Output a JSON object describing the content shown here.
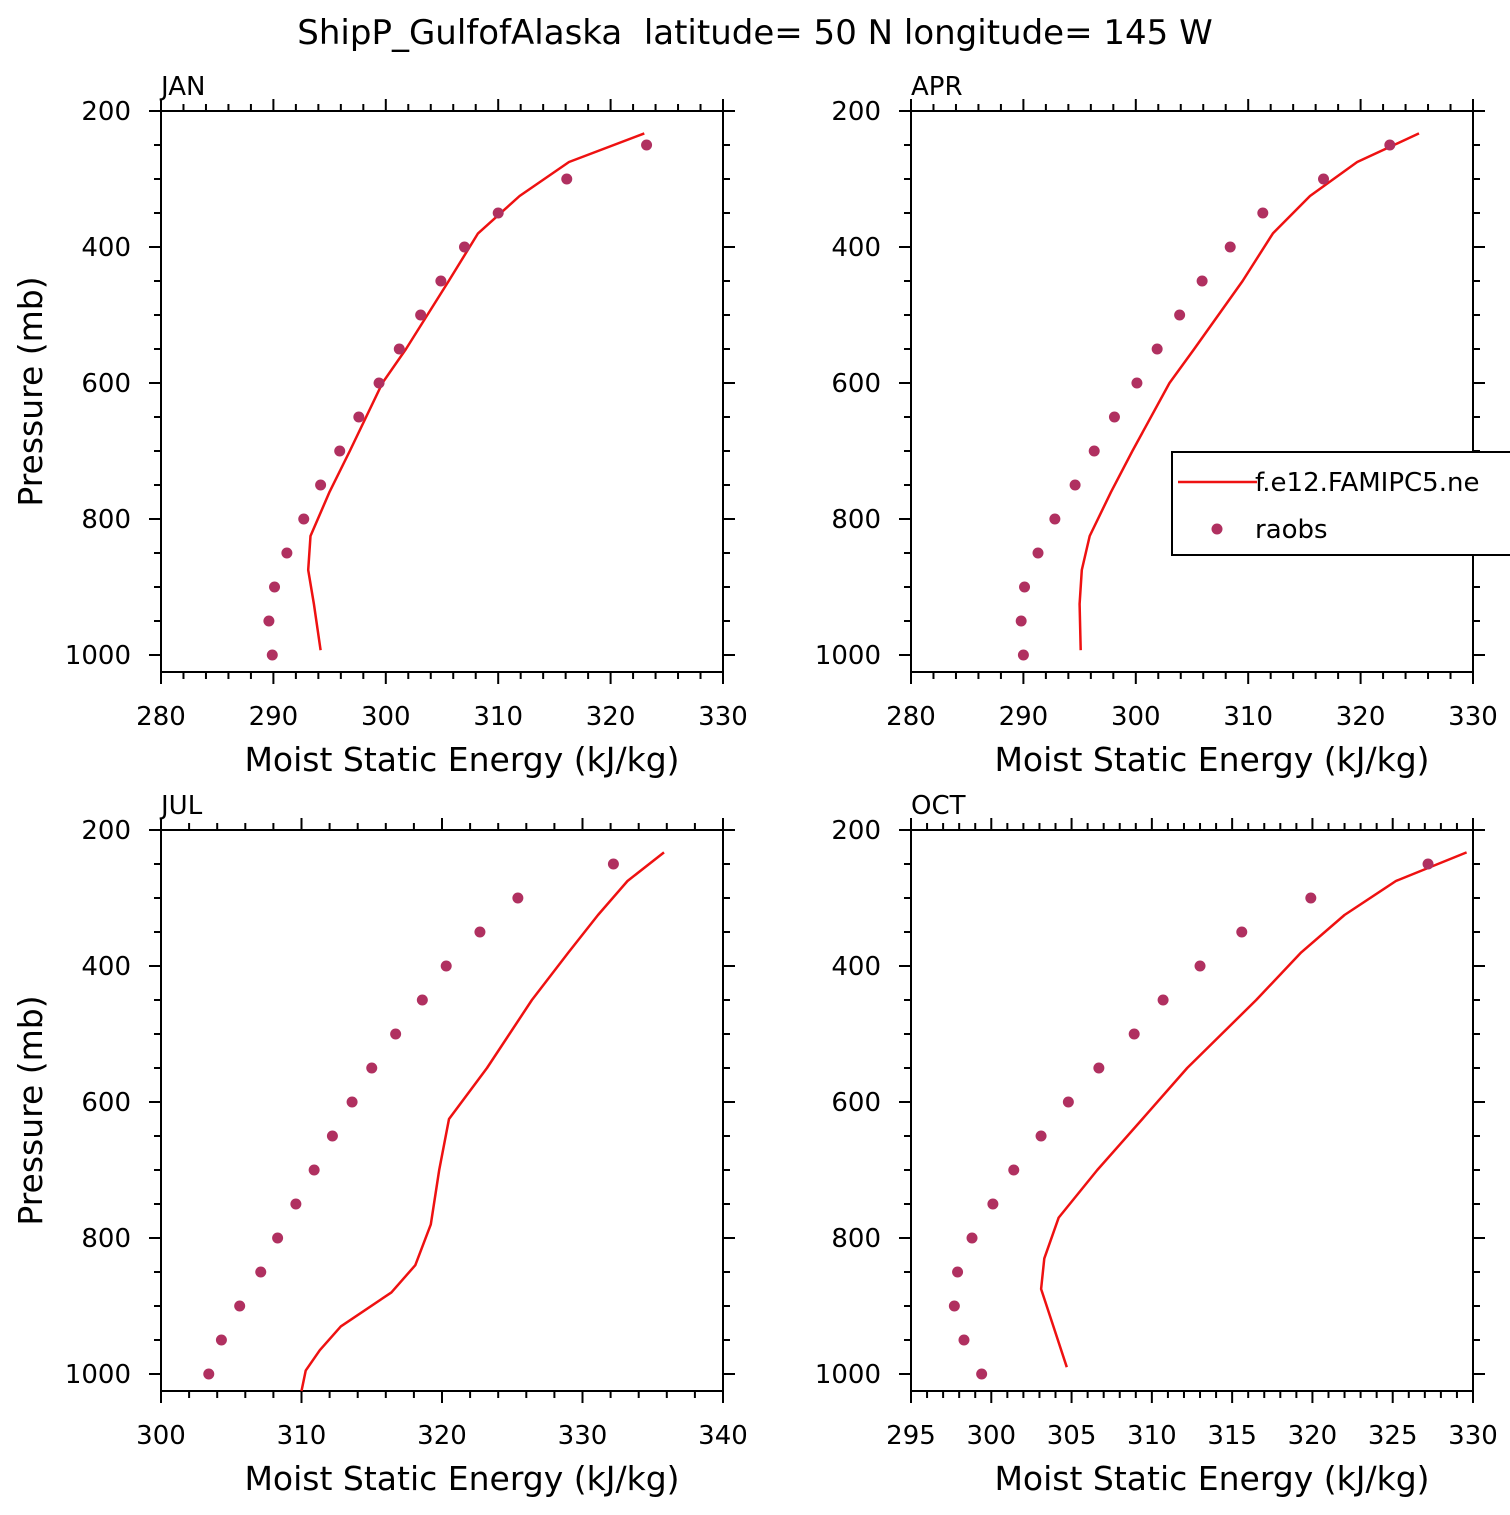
{
  "title": "ShipP_GulfofAlaska  latitude= 50 N longitude= 145 W",
  "colors": {
    "model": "#ee1111",
    "raobs": "#b03060",
    "axes": "#000000"
  },
  "legend": {
    "model_label": "f.e12.FAMIPC5.ne",
    "obs_label": "raobs",
    "placement": "right-middle of APR panel"
  },
  "chart_data": [
    {
      "type": "line+scatter",
      "panel": "JAN",
      "xlabel": "Moist Static Energy (kJ/kg)",
      "ylabel": "Pressure (mb)",
      "xlim": [
        280,
        330
      ],
      "ylim": [
        200,
        1025
      ],
      "x_ticks": [
        "280",
        "290",
        "300",
        "310",
        "320",
        "330"
      ],
      "x_tick_values": [
        280,
        290,
        300,
        310,
        320,
        330
      ],
      "y_ticks": [
        "200",
        "400",
        "600",
        "800",
        "1000"
      ],
      "y_tick_values": [
        200,
        400,
        600,
        800,
        1000
      ],
      "model": {
        "name": "f.e12.FAMIPC5.ne",
        "pressure": [
          233,
          275,
          325,
          380,
          450,
          550,
          600,
          700,
          760,
          825,
          875,
          925,
          993
        ],
        "mse": [
          323.0,
          316.3,
          311.9,
          308.2,
          305.6,
          301.8,
          299.7,
          296.8,
          295.0,
          293.3,
          293.1,
          293.6,
          294.2
        ]
      },
      "raobs": {
        "name": "raobs",
        "pressure": [
          250,
          300,
          350,
          400,
          450,
          500,
          550,
          600,
          650,
          700,
          750,
          800,
          850,
          900,
          950,
          1000
        ],
        "mse": [
          323.2,
          316.1,
          310.0,
          307.0,
          304.9,
          303.1,
          301.2,
          299.4,
          297.6,
          295.9,
          294.2,
          292.7,
          291.2,
          290.1,
          289.6,
          289.9
        ]
      }
    },
    {
      "type": "line+scatter",
      "panel": "APR",
      "xlabel": "Moist Static Energy (kJ/kg)",
      "ylabel": "Pressure (mb)",
      "xlim": [
        280,
        330
      ],
      "ylim": [
        200,
        1025
      ],
      "x_ticks": [
        "280",
        "290",
        "300",
        "310",
        "320",
        "330"
      ],
      "x_tick_values": [
        280,
        290,
        300,
        310,
        320,
        330
      ],
      "y_ticks": [
        "200",
        "400",
        "600",
        "800",
        "1000"
      ],
      "y_tick_values": [
        200,
        400,
        600,
        800,
        1000
      ],
      "model": {
        "name": "f.e12.FAMIPC5.ne",
        "pressure": [
          233,
          275,
          325,
          380,
          450,
          550,
          600,
          700,
          760,
          825,
          875,
          925,
          993
        ],
        "mse": [
          325.2,
          319.7,
          315.5,
          312.2,
          309.5,
          305.2,
          303.0,
          299.7,
          297.8,
          295.9,
          295.2,
          295.0,
          295.1
        ]
      },
      "raobs": {
        "name": "raobs",
        "pressure": [
          250,
          300,
          350,
          400,
          450,
          500,
          550,
          600,
          650,
          700,
          750,
          800,
          850,
          900,
          950,
          1000
        ],
        "mse": [
          322.6,
          316.7,
          311.3,
          308.4,
          305.9,
          303.9,
          301.9,
          300.1,
          298.1,
          296.3,
          294.6,
          292.8,
          291.3,
          290.1,
          289.8,
          290.0
        ]
      }
    },
    {
      "type": "line+scatter",
      "panel": "JUL",
      "xlabel": "Moist Static Energy (kJ/kg)",
      "ylabel": "Pressure (mb)",
      "xlim": [
        300,
        340
      ],
      "ylim": [
        200,
        1025
      ],
      "x_ticks": [
        "300",
        "310",
        "320",
        "330",
        "340"
      ],
      "x_tick_values": [
        300,
        310,
        320,
        330,
        340
      ],
      "y_ticks": [
        "200",
        "400",
        "600",
        "800",
        "1000"
      ],
      "y_tick_values": [
        200,
        400,
        600,
        800,
        1000
      ],
      "model": {
        "name": "f.e12.FAMIPC5.ne",
        "pressure": [
          233,
          275,
          325,
          380,
          450,
          550,
          625,
          700,
          780,
          840,
          880,
          930,
          965,
          995,
          1025
        ],
        "mse": [
          335.8,
          333.2,
          331.1,
          329.0,
          326.4,
          323.2,
          320.5,
          319.8,
          319.2,
          318.1,
          316.4,
          312.8,
          311.3,
          310.3,
          310.0
        ]
      },
      "raobs": {
        "name": "raobs",
        "pressure": [
          250,
          300,
          350,
          400,
          450,
          500,
          550,
          600,
          650,
          700,
          750,
          800,
          850,
          900,
          950,
          1000
        ],
        "mse": [
          332.2,
          325.4,
          322.7,
          320.3,
          318.6,
          316.7,
          315.0,
          313.6,
          312.2,
          310.9,
          309.6,
          308.3,
          307.1,
          305.6,
          304.3,
          303.4
        ]
      }
    },
    {
      "type": "line+scatter",
      "panel": "OCT",
      "xlabel": "Moist Static Energy (kJ/kg)",
      "ylabel": "Pressure (mb)",
      "xlim": [
        295,
        330
      ],
      "ylim": [
        200,
        1025
      ],
      "x_ticks": [
        "295",
        "300",
        "305",
        "310",
        "315",
        "320",
        "325",
        "330"
      ],
      "x_tick_values": [
        295,
        300,
        305,
        310,
        315,
        320,
        325,
        330
      ],
      "y_ticks": [
        "200",
        "400",
        "600",
        "800",
        "1000"
      ],
      "y_tick_values": [
        200,
        400,
        600,
        800,
        1000
      ],
      "model": {
        "name": "f.e12.FAMIPC5.ne",
        "pressure": [
          233,
          275,
          325,
          380,
          450,
          550,
          620,
          700,
          770,
          830,
          875,
          925,
          990
        ],
        "mse": [
          329.6,
          325.2,
          322.0,
          319.3,
          316.5,
          312.2,
          309.6,
          306.6,
          304.2,
          303.3,
          303.1,
          303.8,
          304.7
        ]
      },
      "raobs": {
        "name": "raobs",
        "pressure": [
          250,
          300,
          350,
          400,
          450,
          500,
          550,
          600,
          650,
          700,
          750,
          800,
          850,
          900,
          950,
          1000
        ],
        "mse": [
          327.2,
          319.9,
          315.6,
          313.0,
          310.7,
          308.9,
          306.7,
          304.8,
          303.1,
          301.4,
          300.1,
          298.8,
          297.9,
          297.7,
          298.3,
          299.4
        ]
      }
    }
  ]
}
